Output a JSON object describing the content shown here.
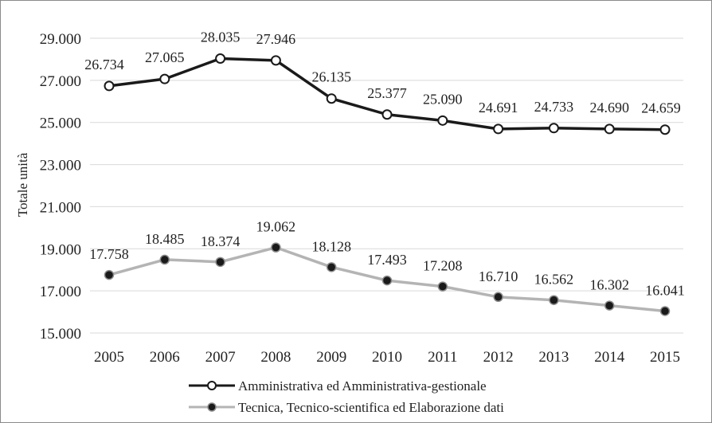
{
  "chart_data": {
    "type": "line",
    "ylabel": "Totale unità",
    "ylim": [
      15000,
      29000
    ],
    "yticks": [
      "15.000",
      "17.000",
      "19.000",
      "21.000",
      "23.000",
      "25.000",
      "27.000",
      "29.000"
    ],
    "ytick_values": [
      15000,
      17000,
      19000,
      21000,
      23000,
      25000,
      27000,
      29000
    ],
    "categories": [
      "2005",
      "2006",
      "2007",
      "2008",
      "2009",
      "2010",
      "2011",
      "2012",
      "2013",
      "2014",
      "2015"
    ],
    "grid": true,
    "legend_position": "bottom",
    "series": [
      {
        "name": "Amministrativa ed Amministrativa-gestionale",
        "values": [
          26734,
          27065,
          28035,
          27946,
          26135,
          25377,
          25090,
          24691,
          24733,
          24690,
          24659
        ],
        "labels": [
          "26.734",
          "27.065",
          "28.035",
          "27.946",
          "26.135",
          "25.377",
          "25.090",
          "24.691",
          "24.733",
          "24.690",
          "24.659"
        ],
        "line_color": "#1a1a1a",
        "marker_fill": "#ffffff",
        "marker_stroke": "#1a1a1a"
      },
      {
        "name": "Tecnica, Tecnico-scientifica ed Elaborazione dati",
        "values": [
          17758,
          18485,
          18374,
          19062,
          18128,
          17493,
          17208,
          16710,
          16562,
          16302,
          16041
        ],
        "labels": [
          "17.758",
          "18.485",
          "18.374",
          "19.062",
          "18.128",
          "17.493",
          "17.208",
          "16.710",
          "16.562",
          "16.302",
          "16.041"
        ],
        "line_color": "#b4b4b4",
        "marker_fill": "#1a1a1a",
        "marker_stroke": "#8c8c8c"
      }
    ]
  }
}
